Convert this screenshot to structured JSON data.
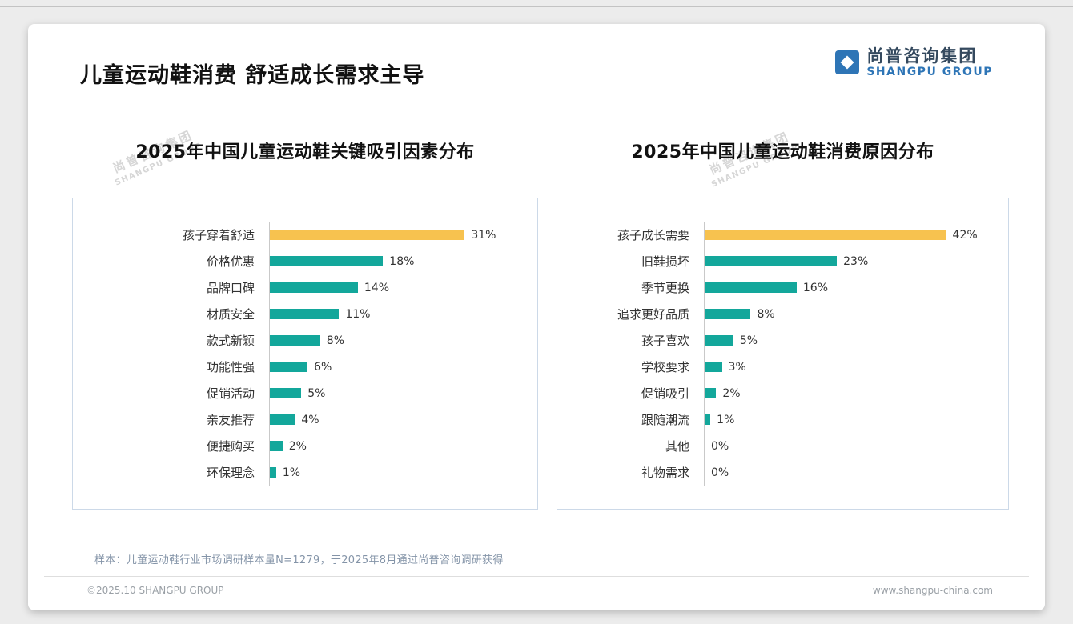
{
  "header": {
    "title": "儿童运动鞋消费 舒适成长需求主导",
    "logo": {
      "cn": "尚普咨询集团",
      "en": "SHANGPU GROUP"
    }
  },
  "watermark": {
    "cn": "尚普咨询集团",
    "en": "SHANGPU GROUP"
  },
  "colors": {
    "bar_default": "#13A79B",
    "bar_highlight": "#F7C24F",
    "logo_blue": "#2e75b6",
    "box_border": "#ccd9e8"
  },
  "chart_data": [
    {
      "type": "bar",
      "orientation": "horizontal",
      "title": "2025年中国儿童运动鞋关键吸引因素分布",
      "categories": [
        "孩子穿着舒适",
        "价格优惠",
        "品牌口碑",
        "材质安全",
        "款式新颖",
        "功能性强",
        "促销活动",
        "亲友推荐",
        "便捷购买",
        "环保理念"
      ],
      "values": [
        31,
        18,
        14,
        11,
        8,
        6,
        5,
        4,
        2,
        1
      ],
      "unit": "%",
      "axis_max": 40,
      "highlight_index": 0,
      "grid": false,
      "legend": false
    },
    {
      "type": "bar",
      "orientation": "horizontal",
      "title": "2025年中国儿童运动鞋消费原因分布",
      "categories": [
        "孩子成长需要",
        "旧鞋损坏",
        "季节更换",
        "追求更好品质",
        "孩子喜欢",
        "学校要求",
        "促销吸引",
        "跟随潮流",
        "其他",
        "礼物需求"
      ],
      "values": [
        42,
        23,
        16,
        8,
        5,
        3,
        2,
        1,
        0,
        0
      ],
      "unit": "%",
      "axis_max": 50,
      "highlight_index": 0,
      "grid": false,
      "legend": false
    }
  ],
  "footer": {
    "note": "样本：儿童运动鞋行业市场调研样本量N=1279，于2025年8月通过尚普咨询调研获得",
    "copyright": "©2025.10 SHANGPU GROUP",
    "website": "www.shangpu-china.com"
  }
}
